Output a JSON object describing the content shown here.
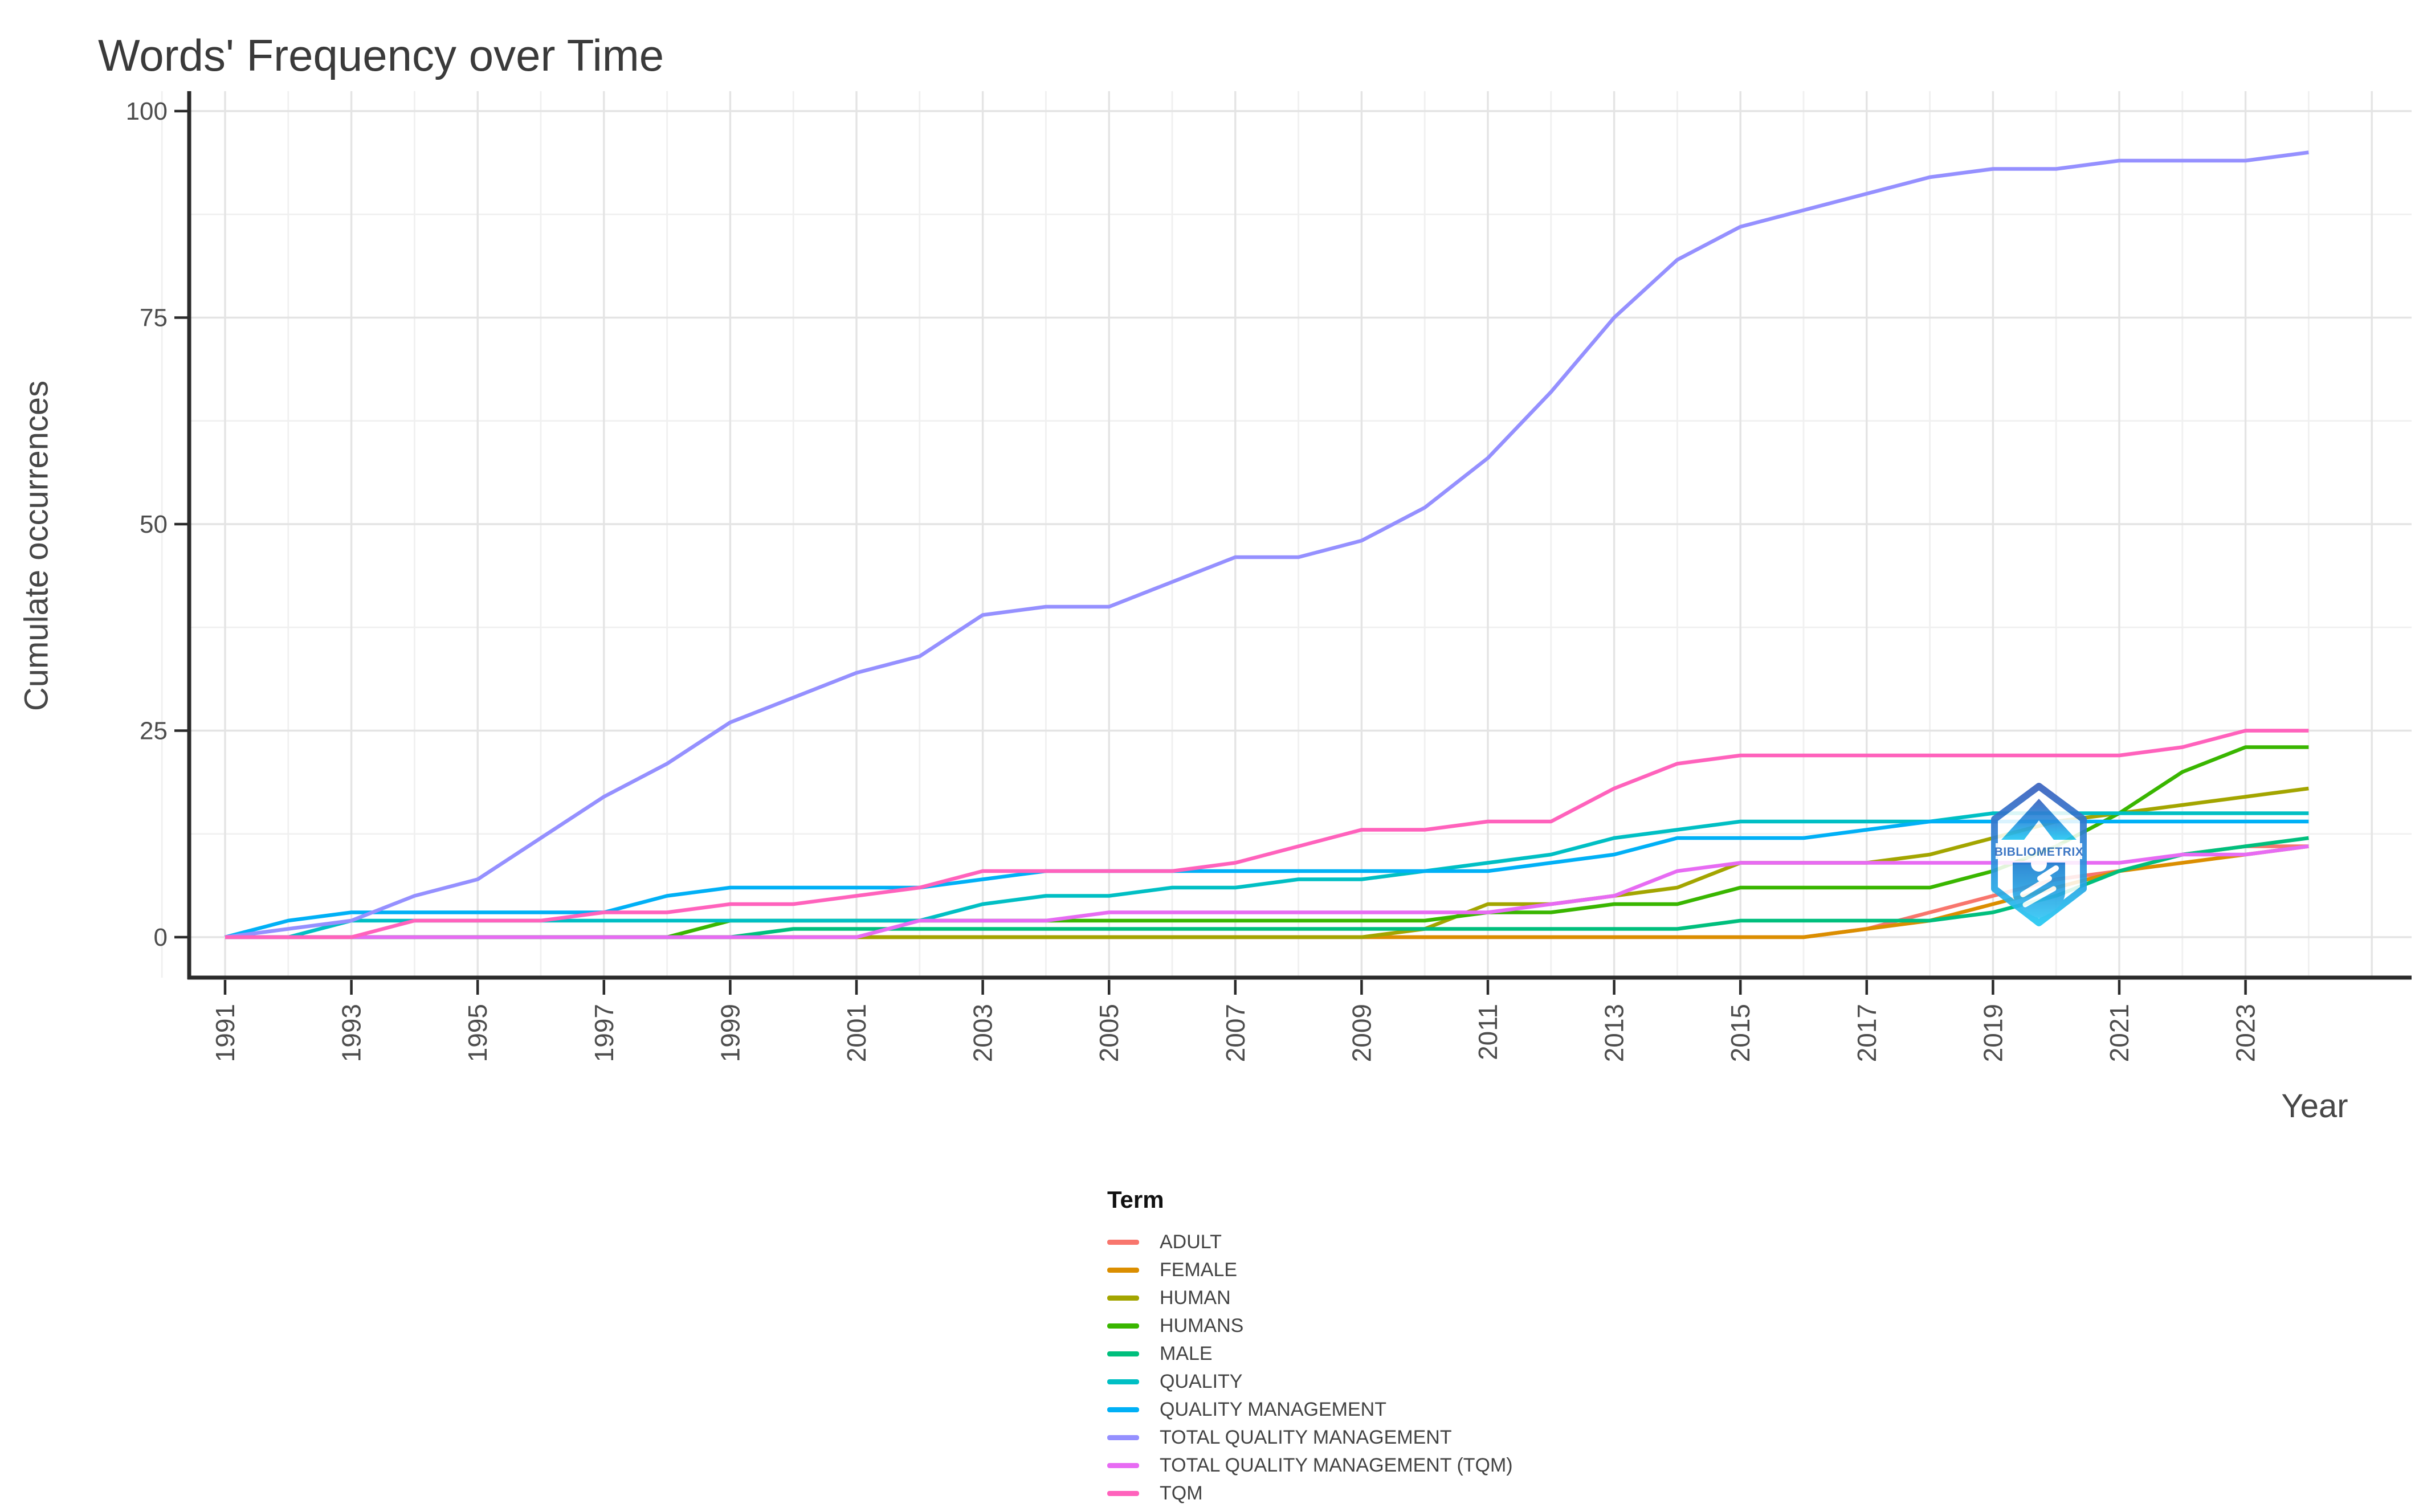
{
  "chart": {
    "title": "Words' Frequency over Time",
    "x_axis_label": "Year",
    "y_axis_label": "Cumulate occurrences",
    "legend_title": "Term"
  },
  "watermark": {
    "text": "BIBLIOMETRIX",
    "badge_color": "#2e7ccf"
  },
  "colors": {
    "axis_line": "#2b2b2b",
    "tick_text": "#4d4d4d",
    "grid_major": "#e4e4e4",
    "grid_minor": "#f0f0f0"
  },
  "chart_data": {
    "type": "line",
    "title": "Words' Frequency over Time",
    "xlabel": "Year",
    "ylabel": "Cumulate occurrences",
    "x": [
      1991,
      1992,
      1993,
      1994,
      1995,
      1996,
      1997,
      1998,
      1999,
      2000,
      2001,
      2002,
      2003,
      2004,
      2005,
      2006,
      2007,
      2008,
      2009,
      2010,
      2011,
      2012,
      2013,
      2014,
      2015,
      2016,
      2017,
      2018,
      2019,
      2020,
      2021,
      2022,
      2023,
      2024
    ],
    "x_tick_labels": [
      "1991",
      "1993",
      "1995",
      "1997",
      "1999",
      "2001",
      "2003",
      "2005",
      "2007",
      "2009",
      "2011",
      "2013",
      "2015",
      "2017",
      "2019",
      "2021",
      "2023"
    ],
    "y_ticks": [
      0,
      25,
      50,
      75,
      100
    ],
    "y_minor_ticks": [
      12.5,
      37.5,
      62.5,
      87.5
    ],
    "ylim": [
      0,
      100
    ],
    "grid": true,
    "legend_position": "bottom",
    "legend_title": "Term",
    "series": [
      {
        "name": "ADULT",
        "color": "#F8766D",
        "values": [
          0,
          0,
          0,
          0,
          0,
          0,
          0,
          0,
          0,
          0,
          0,
          0,
          0,
          0,
          0,
          0,
          0,
          0,
          0,
          0,
          0,
          0,
          0,
          0,
          0,
          0,
          1,
          3,
          5,
          7,
          8,
          10,
          11,
          11
        ]
      },
      {
        "name": "FEMALE",
        "color": "#DB8E00",
        "values": [
          0,
          0,
          0,
          0,
          0,
          0,
          0,
          0,
          0,
          0,
          0,
          0,
          0,
          0,
          0,
          0,
          0,
          0,
          0,
          0,
          0,
          0,
          0,
          0,
          0,
          0,
          1,
          2,
          4,
          6,
          8,
          9,
          10,
          11
        ]
      },
      {
        "name": "HUMAN",
        "color": "#A3A500",
        "values": [
          0,
          0,
          0,
          0,
          0,
          0,
          0,
          0,
          0,
          0,
          0,
          0,
          0,
          0,
          0,
          0,
          0,
          0,
          0,
          1,
          4,
          4,
          5,
          6,
          9,
          9,
          9,
          10,
          12,
          14,
          15,
          16,
          17,
          18
        ]
      },
      {
        "name": "HUMANS",
        "color": "#39B600",
        "values": [
          0,
          0,
          0,
          0,
          0,
          0,
          0,
          0,
          2,
          2,
          2,
          2,
          2,
          2,
          2,
          2,
          2,
          2,
          2,
          2,
          3,
          3,
          4,
          4,
          6,
          6,
          6,
          6,
          8,
          11,
          15,
          20,
          23,
          23
        ]
      },
      {
        "name": "MALE",
        "color": "#00BF7D",
        "values": [
          0,
          0,
          0,
          0,
          0,
          0,
          0,
          0,
          0,
          1,
          1,
          1,
          1,
          1,
          1,
          1,
          1,
          1,
          1,
          1,
          1,
          1,
          1,
          1,
          2,
          2,
          2,
          2,
          3,
          5,
          8,
          10,
          11,
          12
        ]
      },
      {
        "name": "QUALITY",
        "color": "#00BFC4",
        "values": [
          0,
          0,
          2,
          2,
          2,
          2,
          2,
          2,
          2,
          2,
          2,
          2,
          4,
          5,
          5,
          6,
          6,
          7,
          7,
          8,
          9,
          10,
          12,
          13,
          14,
          14,
          14,
          14,
          15,
          15,
          15,
          15,
          15,
          15
        ]
      },
      {
        "name": "QUALITY MANAGEMENT",
        "color": "#00B0F6",
        "values": [
          0,
          2,
          3,
          3,
          3,
          3,
          3,
          5,
          6,
          6,
          6,
          6,
          7,
          8,
          8,
          8,
          8,
          8,
          8,
          8,
          8,
          9,
          10,
          12,
          12,
          12,
          13,
          14,
          14,
          14,
          14,
          14,
          14,
          14
        ]
      },
      {
        "name": "TOTAL QUALITY MANAGEMENT",
        "color": "#9590FF",
        "values": [
          0,
          1,
          2,
          5,
          7,
          12,
          17,
          21,
          26,
          29,
          32,
          34,
          39,
          40,
          40,
          43,
          46,
          46,
          48,
          52,
          58,
          66,
          75,
          82,
          86,
          88,
          90,
          92,
          93,
          93,
          94,
          94,
          94,
          95
        ]
      },
      {
        "name": "TOTAL QUALITY MANAGEMENT (TQM)",
        "color": "#E76BF3",
        "values": [
          0,
          0,
          0,
          0,
          0,
          0,
          0,
          0,
          0,
          0,
          0,
          2,
          2,
          2,
          3,
          3,
          3,
          3,
          3,
          3,
          3,
          4,
          5,
          8,
          9,
          9,
          9,
          9,
          9,
          9,
          9,
          10,
          10,
          11
        ]
      },
      {
        "name": "TQM",
        "color": "#FF62BC",
        "values": [
          0,
          0,
          0,
          2,
          2,
          2,
          3,
          3,
          4,
          4,
          5,
          6,
          8,
          8,
          8,
          8,
          9,
          11,
          13,
          13,
          14,
          14,
          18,
          21,
          22,
          22,
          22,
          22,
          22,
          22,
          22,
          23,
          25,
          25
        ]
      }
    ]
  }
}
